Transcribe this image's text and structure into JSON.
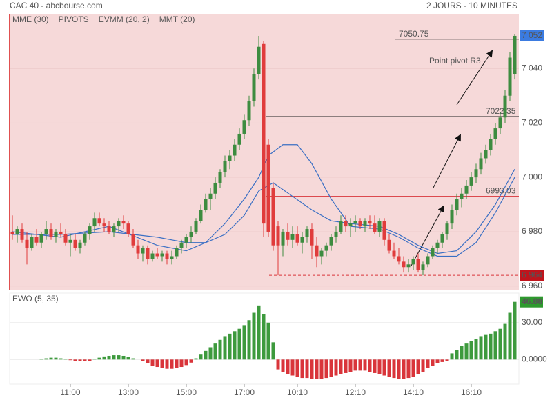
{
  "header": {
    "source": "CAC 40 - abcbourse.com",
    "period": "2 JOURS - 10 MINUTES"
  },
  "chart_data": [
    {
      "type": "candlestick",
      "legend": [
        {
          "name": "MME (30)",
          "color": "#3a6fc4"
        },
        {
          "name": "PIVOTS",
          "color": "#444444"
        },
        {
          "name": "EVMM (20, 2)",
          "color": "#d9534f"
        },
        {
          "name": "MMT (20)",
          "color": "#3a6fc4"
        }
      ],
      "up_color": "#3d8c40",
      "down_color": "#e03c3c",
      "ylim": [
        6958.7,
        7060.1
      ],
      "yticks": [
        {
          "value": 7040,
          "label": "7 040"
        },
        {
          "value": 7020,
          "label": "7 020"
        },
        {
          "value": 7000,
          "label": "7 000"
        },
        {
          "value": 6980,
          "label": "6 980"
        },
        {
          "value": 6960,
          "label": "6 960"
        }
      ],
      "xticks": [
        {
          "value": 12,
          "label": "11:00"
        },
        {
          "value": 24,
          "label": "13:00"
        },
        {
          "value": 36,
          "label": "15:00"
        },
        {
          "value": 48,
          "label": "17:00"
        },
        {
          "value": 59,
          "label": "10:10"
        },
        {
          "value": 71,
          "label": "12:10"
        },
        {
          "value": 83,
          "label": "14:10"
        },
        {
          "value": 95,
          "label": "16:10"
        }
      ],
      "candles": [
        [
          6980,
          6986,
          6977,
          6979
        ],
        [
          6979,
          6982,
          6976,
          6981
        ],
        [
          6981,
          6983,
          6976,
          6977
        ],
        [
          6977,
          6980,
          6968,
          6974
        ],
        [
          6974,
          6979,
          6973,
          6978
        ],
        [
          6978,
          6981,
          6975,
          6976
        ],
        [
          6976,
          6980,
          6974,
          6979
        ],
        [
          6979,
          6984,
          6977,
          6981
        ],
        [
          6981,
          6983,
          6977,
          6978
        ],
        [
          6978,
          6981,
          6976,
          6980
        ],
        [
          6980,
          6983,
          6978,
          6979
        ],
        [
          6979,
          6981,
          6975,
          6976
        ],
        [
          6976,
          6979,
          6971,
          6977
        ],
        [
          6977,
          6979,
          6973,
          6974
        ],
        [
          6974,
          6977,
          6972,
          6976
        ],
        [
          6976,
          6980,
          6975,
          6979
        ],
        [
          6979,
          6983,
          6977,
          6982
        ],
        [
          6982,
          6987,
          6980,
          6985
        ],
        [
          6985,
          6987,
          6982,
          6983
        ],
        [
          6983,
          6985,
          6980,
          6982
        ],
        [
          6982,
          6984,
          6979,
          6980
        ],
        [
          6980,
          6983,
          6978,
          6982
        ],
        [
          6982,
          6985,
          6980,
          6984
        ],
        [
          6984,
          6986,
          6981,
          6983
        ],
        [
          6983,
          6984,
          6978,
          6979
        ],
        [
          6979,
          6981,
          6974,
          6975
        ],
        [
          6975,
          6977,
          6970,
          6972
        ],
        [
          6972,
          6975,
          6969,
          6974
        ],
        [
          6974,
          6975,
          6968,
          6970
        ],
        [
          6970,
          6973,
          6969,
          6972
        ],
        [
          6972,
          6974,
          6970,
          6971
        ],
        [
          6971,
          6973,
          6969,
          6972
        ],
        [
          6972,
          6973,
          6968,
          6970
        ],
        [
          6970,
          6973,
          6968,
          6971
        ],
        [
          6971,
          6975,
          6970,
          6974
        ],
        [
          6974,
          6977,
          6972,
          6976
        ],
        [
          6976,
          6979,
          6974,
          6978
        ],
        [
          6978,
          6982,
          6976,
          6980
        ],
        [
          6980,
          6985,
          6979,
          6984
        ],
        [
          6984,
          6990,
          6983,
          6988
        ],
        [
          6988,
          6994,
          6987,
          6992
        ],
        [
          6992,
          6996,
          6988,
          6994
        ],
        [
          6994,
          7000,
          6992,
          6998
        ],
        [
          6998,
          7003,
          6996,
          7002
        ],
        [
          7002,
          7008,
          7000,
          7006
        ],
        [
          7006,
          7010,
          7003,
          7008
        ],
        [
          7008,
          7014,
          7006,
          7012
        ],
        [
          7012,
          7018,
          7010,
          7016
        ],
        [
          7016,
          7023,
          7014,
          7021
        ],
        [
          7021,
          7030,
          7019,
          7028
        ],
        [
          7028,
          7040,
          7026,
          7038
        ],
        [
          7038,
          7052,
          7036,
          7048
        ],
        [
          7049,
          7050,
          6978,
          6983
        ],
        [
          7012,
          7014,
          6978,
          6980
        ],
        [
          6996,
          6998,
          6973,
          6975
        ],
        [
          6982,
          6984,
          6964,
          6975
        ],
        [
          6975,
          6981,
          6971,
          6980
        ],
        [
          6980,
          6983,
          6975,
          6977
        ],
        [
          6977,
          6982,
          6974,
          6979
        ],
        [
          6979,
          6982,
          6975,
          6976
        ],
        [
          6976,
          6980,
          6972,
          6978
        ],
        [
          6978,
          6982,
          6976,
          6981
        ],
        [
          6981,
          6983,
          6970,
          6975
        ],
        [
          6975,
          6978,
          6967,
          6971
        ],
        [
          6971,
          6974,
          6968,
          6973
        ],
        [
          6973,
          6976,
          6971,
          6975
        ],
        [
          6975,
          6979,
          6973,
          6978
        ],
        [
          6978,
          6982,
          6976,
          6980
        ],
        [
          6980,
          6986,
          6979,
          6984
        ],
        [
          6984,
          6986,
          6980,
          6982
        ],
        [
          6982,
          6985,
          6978,
          6983
        ],
        [
          6983,
          6986,
          6980,
          6984
        ],
        [
          6984,
          6985,
          6981,
          6982
        ],
        [
          6982,
          6985,
          6980,
          6984
        ],
        [
          6984,
          6986,
          6981,
          6983
        ],
        [
          6983,
          6986,
          6979,
          6980
        ],
        [
          6980,
          6985,
          6978,
          6984
        ],
        [
          6984,
          6985,
          6975,
          6977
        ],
        [
          6977,
          6979,
          6972,
          6973
        ],
        [
          6973,
          6976,
          6970,
          6971
        ],
        [
          6971,
          6974,
          6968,
          6969
        ],
        [
          6969,
          6971,
          6965,
          6967
        ],
        [
          6967,
          6970,
          6965,
          6968
        ],
        [
          6968,
          6971,
          6966,
          6970
        ],
        [
          6970,
          6972,
          6965,
          6966
        ],
        [
          6966,
          6969,
          6964,
          6968
        ],
        [
          6968,
          6972,
          6967,
          6971
        ],
        [
          6971,
          6975,
          6970,
          6974
        ],
        [
          6974,
          6977,
          6972,
          6976
        ],
        [
          6976,
          6980,
          6974,
          6979
        ],
        [
          6979,
          6984,
          6977,
          6983
        ],
        [
          6983,
          6990,
          6981,
          6988
        ],
        [
          6988,
          6994,
          6986,
          6992
        ],
        [
          6992,
          6996,
          6989,
          6994
        ],
        [
          6994,
          6999,
          6992,
          6997
        ],
        [
          6997,
          7002,
          6995,
          7000
        ],
        [
          7000,
          7005,
          6998,
          7003
        ],
        [
          7003,
          7009,
          7001,
          7007
        ],
        [
          7007,
          7012,
          7005,
          7010
        ],
        [
          7010,
          7016,
          7008,
          7014
        ],
        [
          7014,
          7020,
          7012,
          7018
        ],
        [
          7018,
          7024,
          7016,
          7022
        ],
        [
          7022,
          7032,
          7020,
          7030
        ],
        [
          7030,
          7046,
          7028,
          7044
        ],
        [
          7038,
          7052.5,
          7036,
          7052
        ]
      ],
      "series": [
        {
          "name": "MME (30)",
          "color": "#3a6fc4",
          "x": [
            0,
            10,
            20,
            30,
            36,
            40,
            44,
            48,
            51,
            54,
            58,
            62,
            66,
            70,
            76,
            80,
            84,
            88,
            92,
            96,
            100,
            104
          ],
          "values": [
            6979,
            6979,
            6980,
            6978,
            6976,
            6976,
            6979,
            6986,
            6995,
            6998,
            6993,
            6988,
            6984,
            6983,
            6982,
            6979,
            6975,
            6972,
            6973,
            6980,
            6990,
            7003
          ]
        },
        {
          "name": "MMT (20)",
          "color": "#3a6fc4",
          "x": [
            0,
            10,
            20,
            30,
            36,
            40,
            44,
            48,
            51,
            53,
            56,
            59,
            62,
            66,
            70,
            76,
            80,
            84,
            88,
            92,
            96,
            100,
            104
          ],
          "values": [
            6980,
            6978,
            6982,
            6975,
            6973,
            6976,
            6983,
            6992,
            7000,
            7008,
            7012,
            7012,
            7005,
            6992,
            6982,
            6981,
            6978,
            6974,
            6971,
            6971,
            6976,
            6987,
            7000
          ]
        }
      ],
      "pivots": [
        {
          "value": 7050.75,
          "color": "#222222"
        },
        {
          "value": 7022.35,
          "color": "#222222"
        },
        {
          "value": 6993.03,
          "color": "#d9343a"
        }
      ],
      "annotation": "Point pivot R3",
      "last_price": 7052,
      "last_price_label": "7 052",
      "low_price": 6964,
      "low_price_label": "6 964"
    },
    {
      "type": "bar",
      "title": "EWO (5, 35)",
      "up_color": "#3d9a3d",
      "down_color": "#d9343a",
      "ylim": [
        -20,
        54
      ],
      "yticks": [
        {
          "value": 30,
          "label": "30.00"
        },
        {
          "value": 0,
          "label": "0.0000"
        }
      ],
      "values": [
        null,
        null,
        null,
        null,
        null,
        null,
        0.5,
        1,
        1.5,
        1.5,
        1,
        0.5,
        -0.5,
        -1,
        -1.5,
        -1.5,
        -1,
        0.5,
        1.5,
        2.5,
        3,
        3.5,
        3.5,
        3,
        2,
        1,
        0,
        -1,
        -3,
        -5,
        -6,
        -7,
        -7.5,
        -7.5,
        -7,
        -6,
        -4.5,
        -2.5,
        1,
        4,
        7,
        10,
        13,
        16,
        19,
        21,
        23,
        25,
        28,
        32,
        38,
        44,
        37,
        30,
        14,
        -8,
        -10,
        -12,
        -13,
        -14,
        -15,
        -15,
        -16,
        -16,
        -16,
        -15,
        -14,
        -13,
        -12,
        -11,
        -10,
        -9,
        -9,
        -9,
        -10,
        -11,
        -12,
        -13,
        -14,
        -15,
        -16,
        -16,
        -15,
        -14,
        -12,
        -10,
        -7,
        -5,
        -3,
        -2,
        -1,
        5,
        8,
        11,
        13,
        15,
        17,
        19,
        20,
        21,
        23,
        25,
        29,
        38,
        46.88
      ],
      "last_value": 46.88
    }
  ]
}
